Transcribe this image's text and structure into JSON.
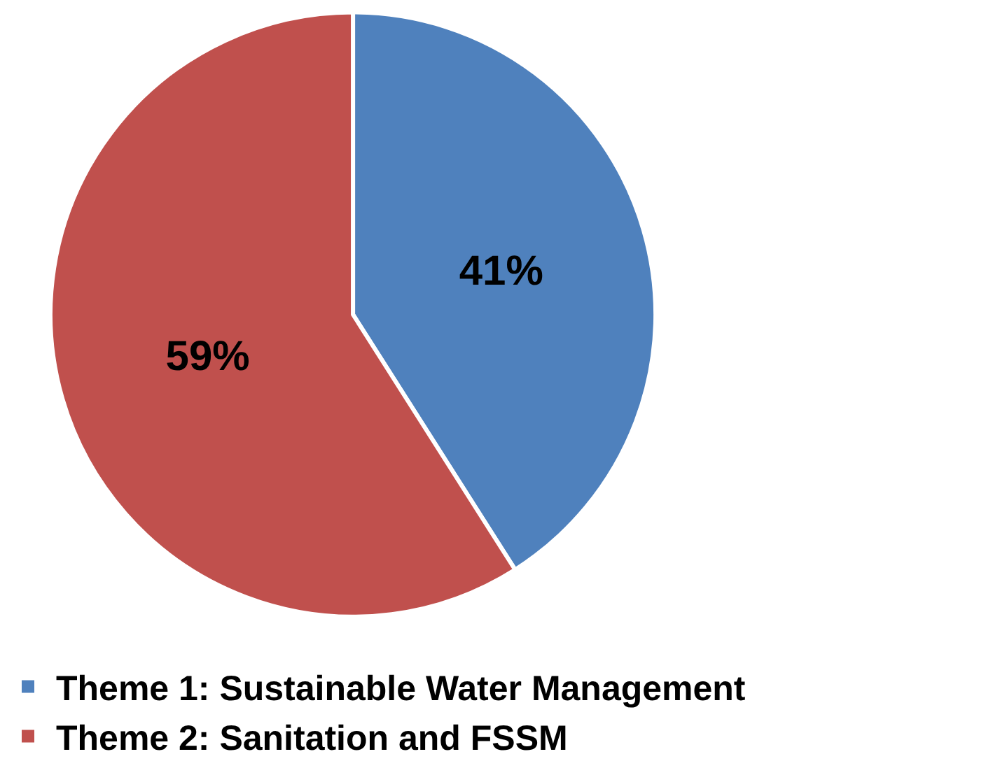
{
  "chart_data": {
    "type": "pie",
    "categories": [
      "Theme 1: Sustainable Water Management",
      "Theme 2: Sanitation and FSSM"
    ],
    "values": [
      41,
      59
    ],
    "colors": [
      "#4f81bd",
      "#c0504d"
    ],
    "value_labels": [
      "41%",
      "59%"
    ],
    "legend": "bottom"
  }
}
